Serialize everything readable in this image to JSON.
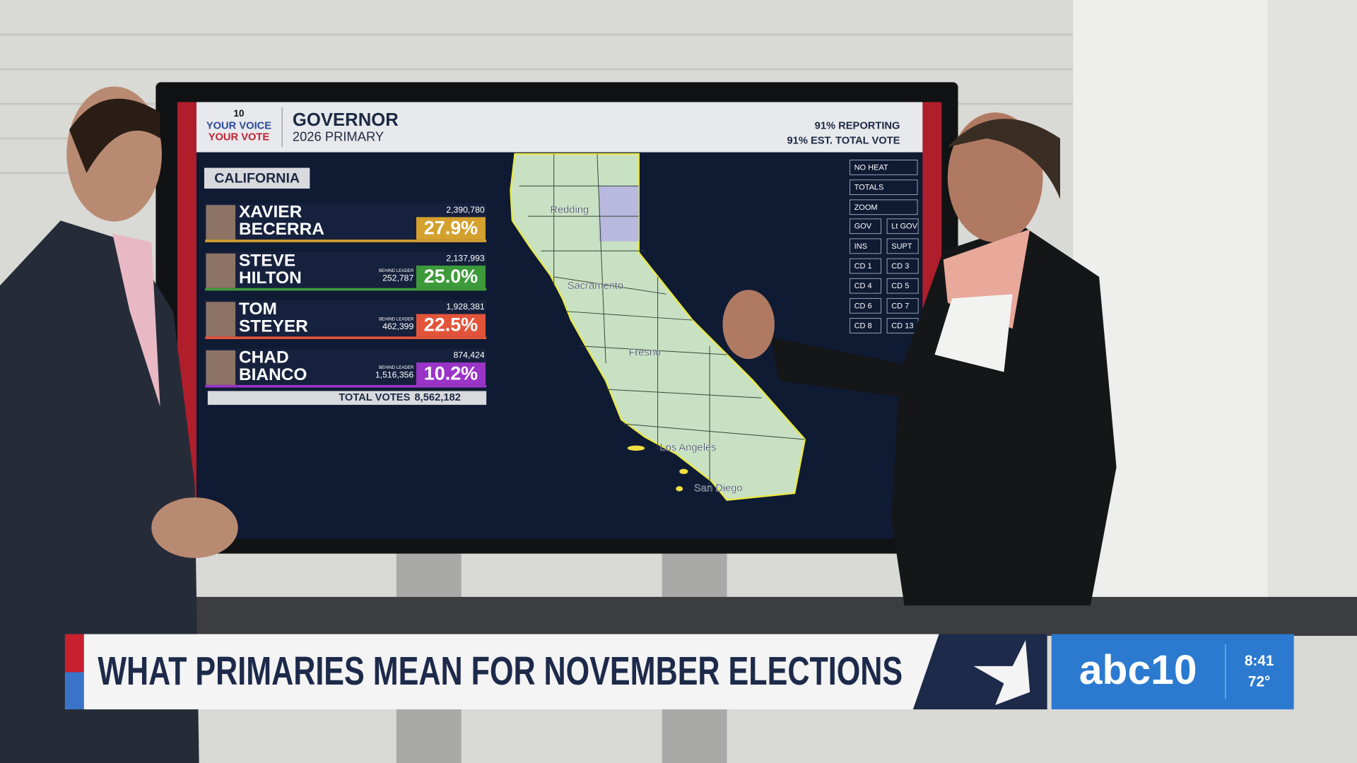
{
  "board": {
    "logo": {
      "channel": "10",
      "line1": "YOUR VOICE",
      "line2": "YOUR VOTE"
    },
    "title": "GOVERNOR",
    "subtitle": "2026 PRIMARY",
    "reporting": "91% REPORTING",
    "est_vote": "91% EST. TOTAL VOTE",
    "region": "CALIFORNIA",
    "candidates": [
      {
        "first": "XAVIER",
        "last": "BECERRA",
        "votes": "2,390,780",
        "pct": "27.9%",
        "color": "#d4a02e"
      },
      {
        "first": "STEVE",
        "last": "HILTON",
        "votes": "2,137,993",
        "behind_label": "BEHIND LEADER",
        "behind": "252,787",
        "pct": "25.0%",
        "color": "#3d9a3a"
      },
      {
        "first": "TOM",
        "last": "STEYER",
        "votes": "1,928,381",
        "behind_label": "BEHIND LEADER",
        "behind": "462,399",
        "pct": "22.5%",
        "color": "#e2543a"
      },
      {
        "first": "CHAD",
        "last": "BIANCO",
        "votes": "874,424",
        "behind_label": "BEHIND LEADER",
        "behind": "1,516,356",
        "pct": "10.2%",
        "color": "#9a34c6"
      }
    ],
    "total_label": "TOTAL VOTES",
    "total": "8,562,182",
    "cities": [
      "Redding",
      "Sacramento",
      "Fresno",
      "Los Angeles",
      "San Diego"
    ],
    "buttons": [
      "NO HEAT",
      "TOTALS",
      "ZOOM",
      "GOV",
      "Lt GOV",
      "INS",
      "SUPT",
      "CD 1",
      "CD 3",
      "CD 4",
      "CD 5",
      "CD 6",
      "CD 7",
      "CD 8",
      "CD 13"
    ]
  },
  "lower_third": {
    "headline": "WHAT PRIMARIES MEAN FOR NOVEMBER ELECTIONS",
    "station": "abc10",
    "time": "8:41",
    "temp": "72°"
  }
}
